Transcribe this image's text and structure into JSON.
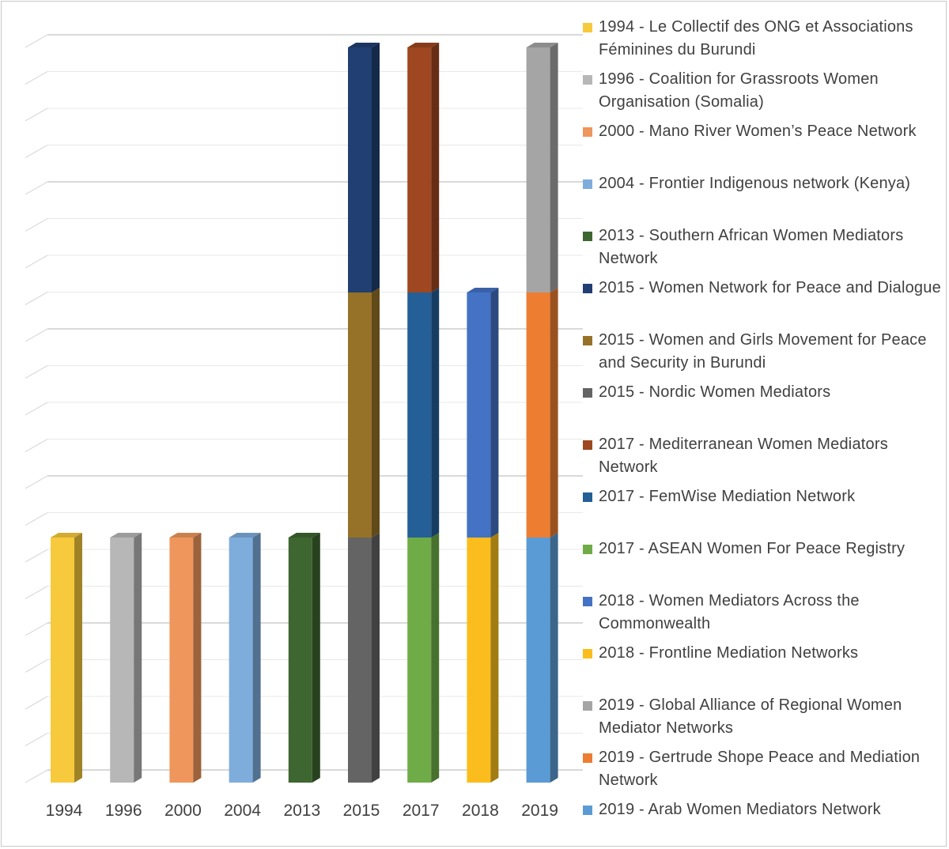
{
  "chart_data": {
    "type": "bar",
    "stacked": true,
    "three_d": true,
    "categories": [
      "1994",
      "1996",
      "2000",
      "2004",
      "2013",
      "2015",
      "2017",
      "2018",
      "2019"
    ],
    "ylim": [
      0,
      3
    ],
    "grid": true,
    "legend_position": "right",
    "series": [
      {
        "name": "1994 - Le Collectif des ONG et Associations Féminines du Burundi",
        "color": "#F7C93C",
        "values": [
          1,
          0,
          0,
          0,
          0,
          0,
          0,
          0,
          0
        ]
      },
      {
        "name": "1996 - Coalition for Grassroots Women Organisation (Somalia)",
        "color": "#B7B7B7",
        "values": [
          0,
          1,
          0,
          0,
          0,
          0,
          0,
          0,
          0
        ]
      },
      {
        "name": "2000 - Mano River Women’s Peace Network",
        "color": "#EE965C",
        "values": [
          0,
          0,
          1,
          0,
          0,
          0,
          0,
          0,
          0
        ]
      },
      {
        "name": "2004 - Frontier Indigenous network (Kenya)",
        "color": "#7EADDC",
        "values": [
          0,
          0,
          0,
          1,
          0,
          0,
          0,
          0,
          0
        ]
      },
      {
        "name": "2013 - Southern African Women Mediators Network",
        "color": "#3D6630",
        "values": [
          0,
          0,
          0,
          0,
          1,
          0,
          0,
          0,
          0
        ]
      },
      {
        "name": "2015 - Women Network for Peace and Dialogue",
        "color": "#213F72",
        "values": [
          0,
          0,
          0,
          0,
          0,
          1,
          0,
          0,
          0
        ]
      },
      {
        "name": "2015 - Women and Girls Movement for Peace and Security in Burundi",
        "color": "#957228",
        "values": [
          0,
          0,
          0,
          0,
          0,
          1,
          0,
          0,
          0
        ]
      },
      {
        "name": "2015 - Nordic Women Mediators",
        "color": "#646464",
        "values": [
          0,
          0,
          0,
          0,
          0,
          1,
          0,
          0,
          0
        ]
      },
      {
        "name": "2017 - Mediterranean Women Mediators Network",
        "color": "#9E4720",
        "values": [
          0,
          0,
          0,
          0,
          0,
          0,
          1,
          0,
          0
        ]
      },
      {
        "name": "2017 - FemWise Mediation Network",
        "color": "#245F97",
        "values": [
          0,
          0,
          0,
          0,
          0,
          0,
          1,
          0,
          0
        ]
      },
      {
        "name": "2017 - ASEAN Women For Peace Registry",
        "color": "#6FAC47",
        "values": [
          0,
          0,
          0,
          0,
          0,
          0,
          1,
          0,
          0
        ]
      },
      {
        "name": "2018 - Women Mediators Across the Commonwealth",
        "color": "#4472C4",
        "values": [
          0,
          0,
          0,
          0,
          0,
          0,
          0,
          1,
          0
        ]
      },
      {
        "name": "2018 - Frontline Mediation Networks",
        "color": "#FABD1D",
        "values": [
          0,
          0,
          0,
          0,
          0,
          0,
          0,
          1,
          0
        ]
      },
      {
        "name": "2019 - Global Alliance of Regional Women Mediator Networks",
        "color": "#A5A5A5",
        "values": [
          0,
          0,
          0,
          0,
          0,
          0,
          0,
          0,
          1
        ]
      },
      {
        "name": "2019 - Gertrude Shope Peace and Mediation Network",
        "color": "#ED7D31",
        "values": [
          0,
          0,
          0,
          0,
          0,
          0,
          0,
          0,
          1
        ]
      },
      {
        "name": "2019 - Arab Women Mediators Network",
        "color": "#5B9BD5",
        "values": [
          0,
          0,
          0,
          0,
          0,
          0,
          0,
          0,
          1
        ]
      }
    ],
    "stack_order": {
      "1994": [
        "1994 - Le Collectif des ONG et Associations Féminines du Burundi"
      ],
      "1996": [
        "1996 - Coalition for Grassroots Women Organisation (Somalia)"
      ],
      "2000": [
        "2000 - Mano River Women’s Peace Network"
      ],
      "2004": [
        "2004 - Frontier Indigenous network (Kenya)"
      ],
      "2013": [
        "2013 - Southern African Women Mediators Network"
      ],
      "2015": [
        "2015 - Nordic Women Mediators",
        "2015 - Women and Girls Movement for Peace and Security in Burundi",
        "2015 - Women Network for Peace and Dialogue"
      ],
      "2017": [
        "2017 - ASEAN Women For Peace Registry",
        "2017 - FemWise Mediation Network",
        "2017 - Mediterranean Women Mediators Network"
      ],
      "2018": [
        "2018 - Frontline Mediation Networks",
        "2018 - Women Mediators Across the Commonwealth"
      ],
      "2019": [
        "2019 - Arab Women Mediators Network",
        "2019 - Gertrude Shope Peace and Mediation Network",
        "2019 - Global Alliance of Regional Women Mediator Networks"
      ]
    }
  }
}
